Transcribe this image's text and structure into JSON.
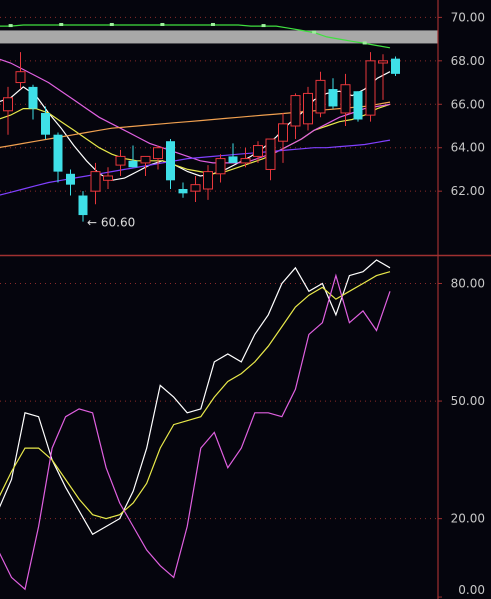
{
  "chart_data": [
    {
      "type": "candlestick",
      "yaxis_ticks": [
        "70.00",
        "68.00",
        "66.00",
        "64.00",
        "62.00"
      ],
      "ylim": [
        59.2,
        70.8
      ],
      "grid": true,
      "min_annotation": "← 60.60",
      "colors": {
        "up": "#e8373c",
        "down": "#3fe0e8",
        "background": "#05050d",
        "grid": "#8a2a2a",
        "axis_text": "#c8c8c8"
      },
      "candles": [
        {
          "o": 65.7,
          "h": 66.8,
          "l": 64.6,
          "c": 66.3
        },
        {
          "o": 67.0,
          "h": 68.4,
          "l": 66.7,
          "c": 67.5
        },
        {
          "o": 66.8,
          "h": 66.9,
          "l": 65.3,
          "c": 65.8
        },
        {
          "o": 65.6,
          "h": 65.9,
          "l": 64.4,
          "c": 64.6
        },
        {
          "o": 64.6,
          "h": 64.7,
          "l": 62.4,
          "c": 62.9
        },
        {
          "o": 62.8,
          "h": 63.0,
          "l": 61.8,
          "c": 62.3
        },
        {
          "o": 61.8,
          "h": 62.0,
          "l": 60.6,
          "c": 60.9
        },
        {
          "o": 62.0,
          "h": 63.3,
          "l": 61.4,
          "c": 62.9
        },
        {
          "o": 62.5,
          "h": 63.1,
          "l": 62.1,
          "c": 62.7
        },
        {
          "o": 63.2,
          "h": 63.9,
          "l": 62.7,
          "c": 63.6
        },
        {
          "o": 63.4,
          "h": 64.1,
          "l": 63.1,
          "c": 63.1
        },
        {
          "o": 63.3,
          "h": 63.6,
          "l": 62.7,
          "c": 63.6
        },
        {
          "o": 63.5,
          "h": 64.1,
          "l": 63.0,
          "c": 64.0
        },
        {
          "o": 64.3,
          "h": 64.4,
          "l": 62.1,
          "c": 62.5
        },
        {
          "o": 62.1,
          "h": 62.4,
          "l": 61.7,
          "c": 61.9
        },
        {
          "o": 62.0,
          "h": 62.7,
          "l": 61.5,
          "c": 62.3
        },
        {
          "o": 62.1,
          "h": 63.2,
          "l": 61.6,
          "c": 62.9
        },
        {
          "o": 62.8,
          "h": 63.7,
          "l": 62.4,
          "c": 63.5
        },
        {
          "o": 63.6,
          "h": 64.2,
          "l": 63.4,
          "c": 63.3
        },
        {
          "o": 63.3,
          "h": 64.0,
          "l": 63.1,
          "c": 63.5
        },
        {
          "o": 63.6,
          "h": 64.3,
          "l": 63.3,
          "c": 64.1
        },
        {
          "o": 63.0,
          "h": 64.4,
          "l": 62.5,
          "c": 64.4
        },
        {
          "o": 64.3,
          "h": 65.6,
          "l": 63.3,
          "c": 65.1
        },
        {
          "o": 65.0,
          "h": 66.5,
          "l": 64.4,
          "c": 66.4
        },
        {
          "o": 65.1,
          "h": 66.8,
          "l": 64.8,
          "c": 66.5
        },
        {
          "o": 65.6,
          "h": 67.5,
          "l": 65.4,
          "c": 67.1
        },
        {
          "o": 66.7,
          "h": 67.2,
          "l": 65.8,
          "c": 65.9
        },
        {
          "o": 65.6,
          "h": 67.4,
          "l": 65.0,
          "c": 66.9
        },
        {
          "o": 66.6,
          "h": 66.6,
          "l": 65.2,
          "c": 65.3
        },
        {
          "o": 65.5,
          "h": 68.4,
          "l": 65.2,
          "c": 68.0
        },
        {
          "o": 67.9,
          "h": 68.3,
          "l": 66.2,
          "c": 68.0
        },
        {
          "o": 68.1,
          "h": 68.2,
          "l": 67.3,
          "c": 67.4
        }
      ],
      "lines": [
        {
          "color": "#ffffff",
          "values": [
            66.1,
            66.3,
            66.8,
            66.4,
            65.6,
            64.9,
            64.1,
            63.4,
            62.8,
            62.5,
            62.6,
            62.9,
            63.2,
            63.4,
            63.2,
            62.9,
            62.7,
            62.8,
            63.0,
            63.3,
            63.6,
            64.0,
            64.5,
            65.1,
            65.6,
            66.2,
            66.5,
            66.6,
            66.4,
            66.7,
            67.2,
            67.5
          ]
        },
        {
          "color": "#e8e84a",
          "values": [
            65.3,
            65.5,
            65.8,
            65.8,
            65.6,
            65.2,
            64.8,
            64.4,
            64.0,
            63.7,
            63.5,
            63.4,
            63.4,
            63.4,
            63.2,
            63.0,
            62.9,
            62.8,
            62.9,
            63.1,
            63.3,
            63.5,
            63.8,
            64.1,
            64.4,
            64.8,
            65.0,
            65.2,
            65.3,
            65.5,
            65.8,
            66.0
          ]
        },
        {
          "color": "#e060e0",
          "values": [
            68.1,
            67.9,
            67.6,
            67.3,
            67.0,
            66.6,
            66.2,
            65.8,
            65.4,
            65.1,
            64.8,
            64.5,
            64.2,
            64.0,
            63.8,
            63.6,
            63.4,
            63.3,
            63.3,
            63.3,
            63.4,
            63.6,
            63.8,
            64.1,
            64.4,
            64.8,
            65.1,
            65.4,
            65.6,
            65.8,
            65.9,
            66.0
          ]
        },
        {
          "color": "#f0a050",
          "values": [
            64.0,
            64.1,
            64.2,
            64.3,
            64.4,
            64.5,
            64.6,
            64.7,
            64.8,
            64.9,
            64.95,
            65.0,
            65.05,
            65.1,
            65.15,
            65.2,
            65.25,
            65.3,
            65.35,
            65.4,
            65.45,
            65.5,
            65.55,
            65.6,
            65.65,
            65.7,
            65.75,
            65.8,
            65.85,
            65.9,
            66.0,
            66.1
          ]
        },
        {
          "color": "#8040ff",
          "values": [
            61.8,
            61.95,
            62.1,
            62.25,
            62.4,
            62.5,
            62.6,
            62.7,
            62.8,
            62.9,
            63.0,
            63.1,
            63.2,
            63.3,
            63.4,
            63.5,
            63.55,
            63.6,
            63.65,
            63.7,
            63.75,
            63.8,
            63.85,
            63.9,
            63.95,
            64.0,
            64.0,
            64.05,
            64.1,
            64.15,
            64.25,
            64.35
          ]
        },
        {
          "color": "#40e040",
          "values": [
            69.6,
            69.6,
            69.65,
            69.65,
            69.65,
            69.65,
            69.65,
            69.65,
            69.65,
            69.65,
            69.65,
            69.65,
            69.65,
            69.65,
            69.65,
            69.65,
            69.65,
            69.65,
            69.65,
            69.65,
            69.6,
            69.6,
            69.6,
            69.5,
            69.4,
            69.3,
            69.1,
            69.0,
            68.9,
            68.8,
            68.7,
            68.6
          ]
        }
      ]
    },
    {
      "type": "line",
      "yaxis_ticks": [
        "80.00",
        "50.00",
        "20.00",
        "0.00"
      ],
      "ylim": [
        -0.5,
        86.5
      ],
      "grid": true,
      "colors": {
        "background": "#05050d",
        "grid": "#8a2a2a",
        "axis_text": "#c8c8c8"
      },
      "series": [
        {
          "color": "#ffffff",
          "values": [
            22,
            30,
            47,
            46,
            35,
            28,
            22,
            16,
            18,
            20,
            27,
            38,
            54,
            51,
            47,
            48,
            60,
            62,
            60,
            67,
            72,
            80,
            84,
            78,
            80,
            72,
            82,
            83,
            86,
            84
          ]
        },
        {
          "color": "#e8e84a",
          "values": [
            25,
            32,
            38,
            38,
            35,
            30,
            25,
            21,
            20,
            21,
            24,
            29,
            38,
            44,
            45,
            46,
            51,
            55,
            57,
            60,
            64,
            69,
            74,
            77,
            79,
            76,
            78,
            80,
            82,
            83
          ]
        },
        {
          "color": "#e060e0",
          "values": [
            12,
            5,
            2,
            18,
            38,
            46,
            48,
            47,
            33,
            24,
            18,
            12,
            8,
            5,
            18,
            38,
            42,
            33,
            38,
            47,
            47,
            46,
            53,
            67,
            70,
            82,
            70,
            73,
            68,
            78
          ]
        }
      ]
    }
  ]
}
